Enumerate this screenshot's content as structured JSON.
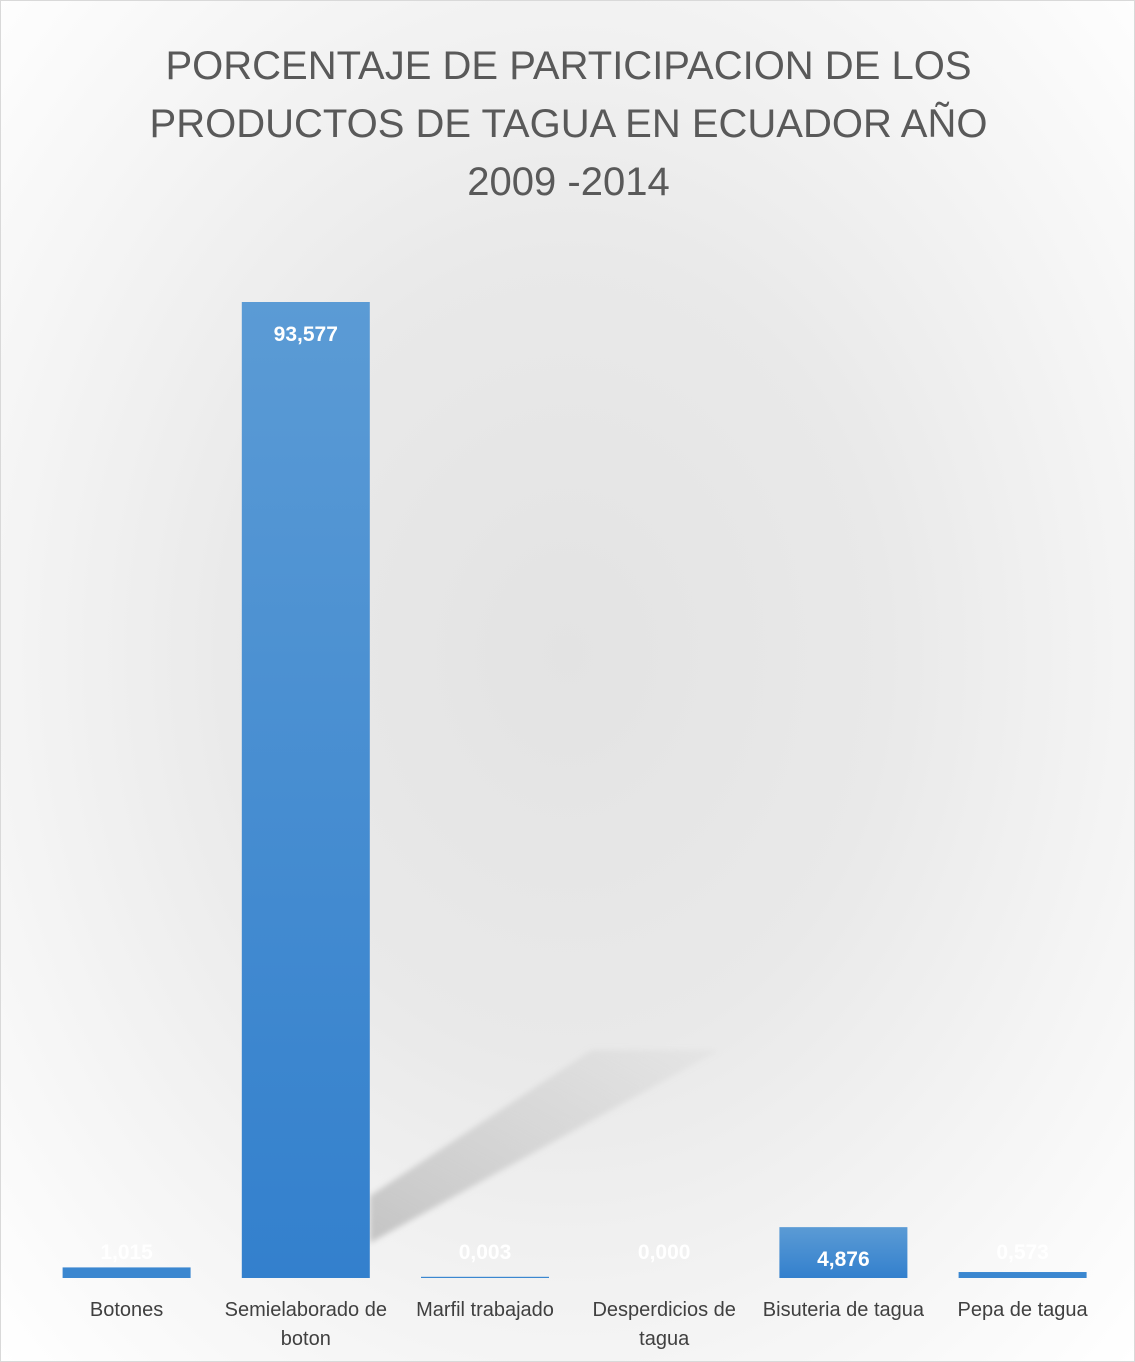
{
  "chart_data": {
    "type": "bar",
    "title_lines": [
      "PORCENTAJE DE PARTICIPACION DE  LOS",
      "PRODUCTOS DE TAGUA EN ECUADOR AÑO",
      "2009 -2014"
    ],
    "categories": [
      [
        "Botones"
      ],
      [
        "Semielaborado de",
        "boton"
      ],
      [
        "Marfil trabajado"
      ],
      [
        "Desperdicios de",
        "tagua"
      ],
      [
        "Bisuteria de tagua"
      ],
      [
        "Pepa de tagua"
      ]
    ],
    "values": [
      1.015,
      93.577,
      0.003,
      0.0,
      4.876,
      0.573
    ],
    "value_labels": [
      "1,015",
      "93,577",
      "0,003",
      "0,000",
      "4,876",
      "0,573"
    ],
    "ylim": [
      0,
      100
    ],
    "grid": false,
    "legend": "none",
    "bar_color": "#3b87d0"
  }
}
